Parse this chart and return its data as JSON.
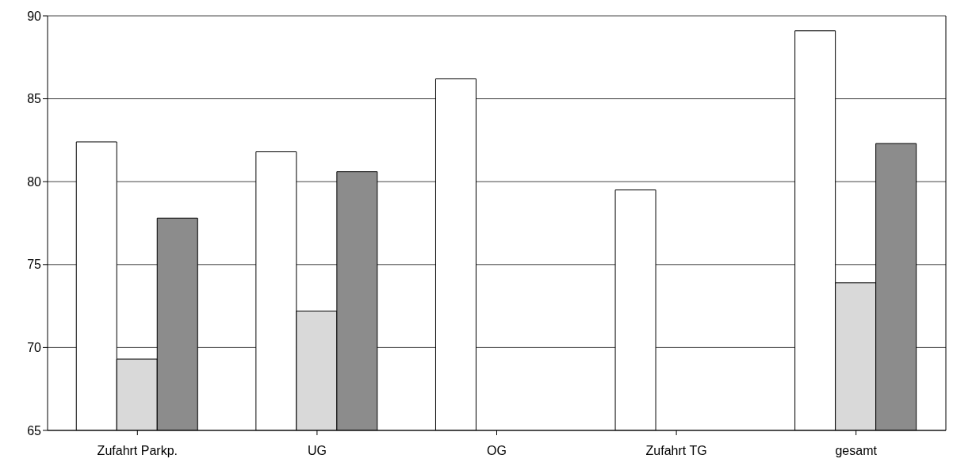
{
  "chart_data": {
    "type": "bar",
    "categories": [
      "Zufahrt Parkp.",
      "UG",
      "OG",
      "Zufahrt TG",
      "gesamt"
    ],
    "series": [
      {
        "color": "#ffffff",
        "values": [
          82.4,
          81.8,
          86.2,
          79.5,
          89.1
        ]
      },
      {
        "color": "#d9d9d9",
        "values": [
          69.3,
          72.2,
          null,
          null,
          73.9
        ]
      },
      {
        "color": "#8c8c8c",
        "values": [
          77.8,
          80.6,
          null,
          null,
          82.3
        ]
      }
    ],
    "ylim": [
      65,
      90
    ],
    "yticks": [
      65,
      70,
      75,
      80,
      85,
      90
    ],
    "grid": "y"
  }
}
